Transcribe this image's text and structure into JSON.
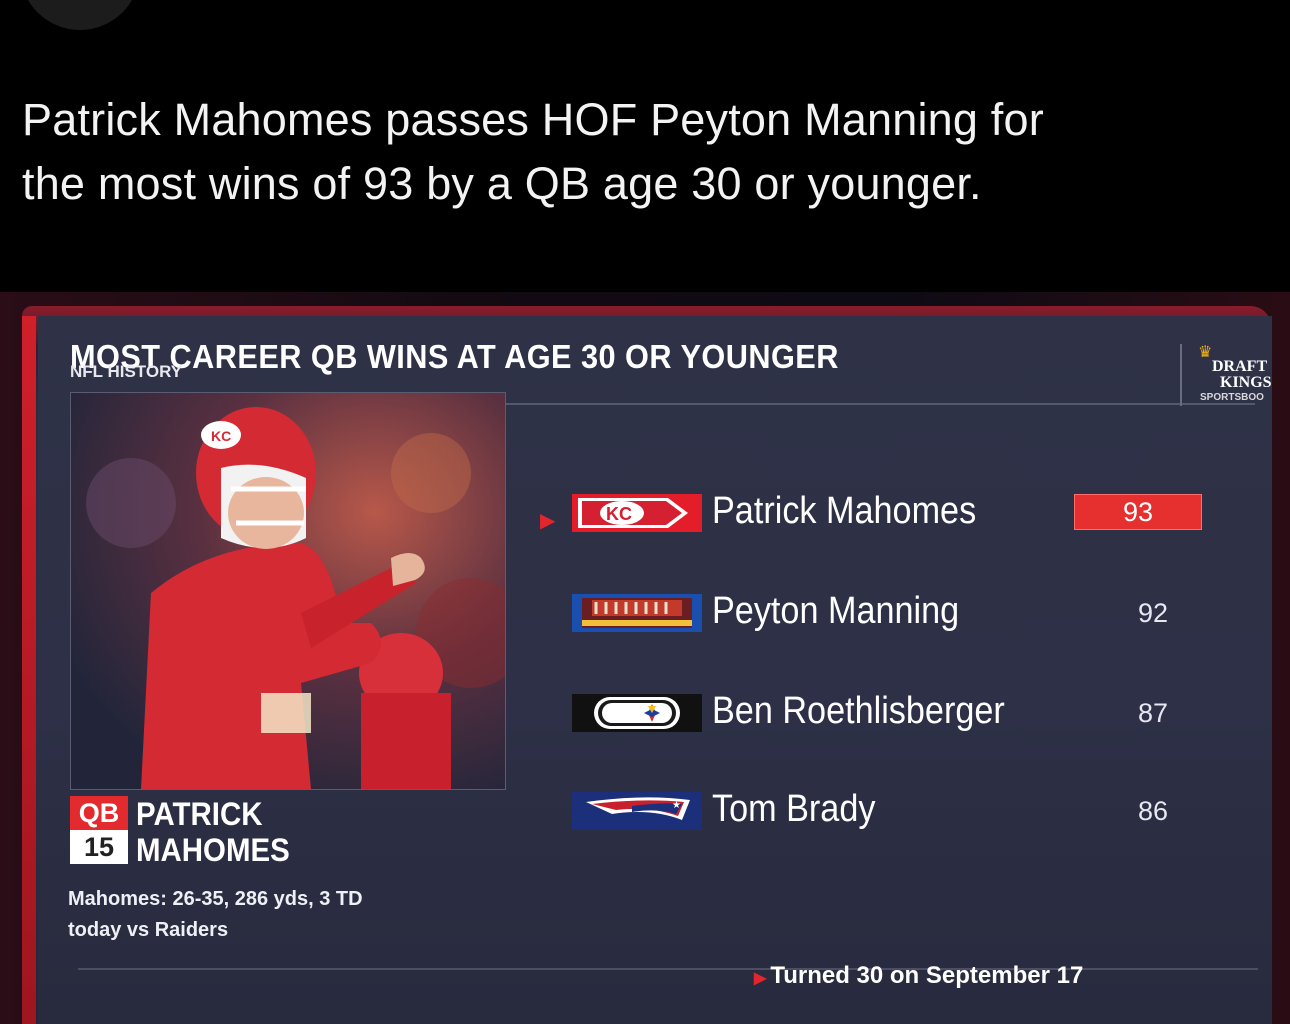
{
  "tweet": {
    "line1": "Patrick Mahomes passes HOF Peyton Manning for",
    "line2": "the most wins of 93 by a QB age 30 or younger."
  },
  "graphic": {
    "title": "MOST CAREER QB WINS AT AGE 30 OR YOUNGER",
    "subtitle": "NFL HISTORY",
    "sponsor": {
      "line1": "DRAFT",
      "line2": "KINGS",
      "line3": "SPORTSBOO"
    },
    "player": {
      "position": "QB",
      "number": "15",
      "first_name": "PATRICK",
      "last_name": "MAHOMES",
      "game_line1": "Mahomes: 26-35, 286 yds, 3 TD",
      "game_line2": "today vs Raiders"
    },
    "colors": {
      "accent": "#e62f2f",
      "panel": "#2d3046"
    },
    "leaders": [
      {
        "name": "Patrick Mahomes",
        "wins": "93",
        "team_logo": "chiefs-logo",
        "highlighted": true
      },
      {
        "name": "Peyton Manning",
        "wins": "92",
        "team_logo": "broncos-logo",
        "highlighted": false
      },
      {
        "name": "Ben Roethlisberger",
        "wins": "87",
        "team_logo": "steelers-logo",
        "highlighted": false
      },
      {
        "name": "Tom Brady",
        "wins": "86",
        "team_logo": "patriots-logo",
        "highlighted": false
      }
    ],
    "footnote": "Turned 30 on September 17"
  }
}
